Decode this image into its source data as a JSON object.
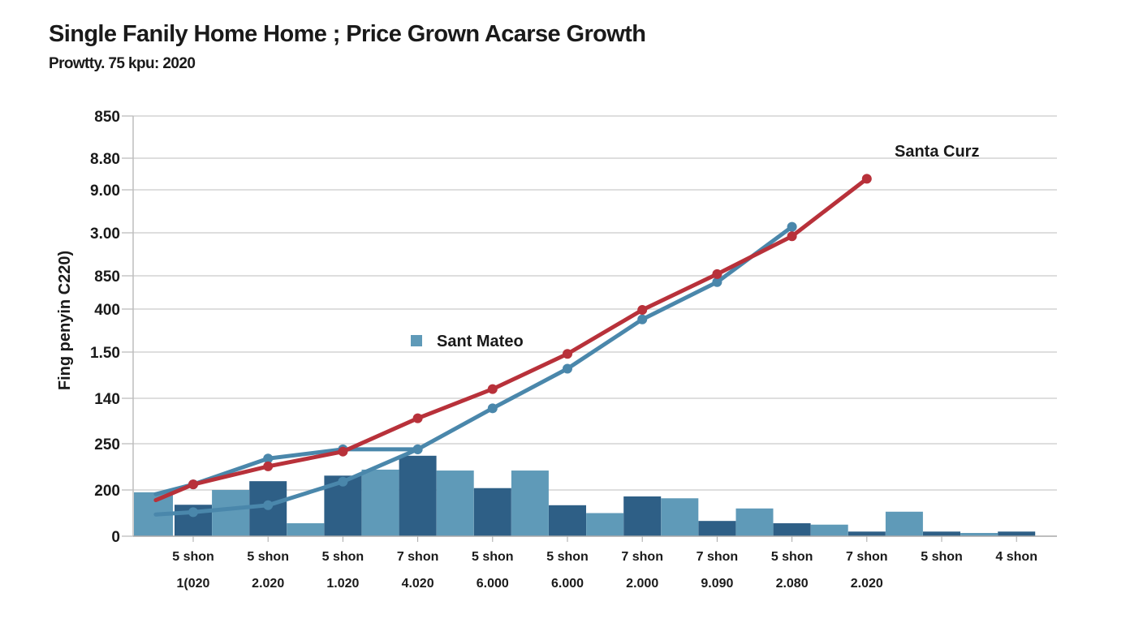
{
  "chart_data": {
    "type": "bar",
    "title": "Single Fanily Home Home ; Price Grown Acarse Growth",
    "subtitle": "Prowtty. 75 kpu: 2020",
    "ylabel": "Fing penyin C220)",
    "xlabel": "",
    "y_ticks": [
      "0",
      "200",
      "250",
      "140",
      "1.50",
      "400",
      "850",
      "3.00",
      "9.00",
      "8.80",
      "850"
    ],
    "value_units": "gridline index (0 = baseline tick '0', 10 = top tick '850')",
    "ylim": [
      0,
      10
    ],
    "grid": true,
    "x_ticks": [
      {
        "top": "5 shon",
        "bottom": "1(020"
      },
      {
        "top": "5 shon",
        "bottom": "2.020"
      },
      {
        "top": "5 shon",
        "bottom": "1.020"
      },
      {
        "top": "7 shon",
        "bottom": "4.020"
      },
      {
        "top": "5 shon",
        "bottom": "6.000"
      },
      {
        "top": "5 shon",
        "bottom": "6.000"
      },
      {
        "top": "7 shon",
        "bottom": "2.000"
      },
      {
        "top": "7 shon",
        "bottom": "9.090"
      },
      {
        "top": "5 shon",
        "bottom": "2.080"
      },
      {
        "top": "7 shon",
        "bottom": "2.020"
      },
      {
        "top": "5 shon",
        "bottom": ""
      },
      {
        "top": "4 shon",
        "bottom": ""
      }
    ],
    "bars": {
      "dark_series": [
        0.68,
        1.19,
        1.31,
        1.74,
        1.04,
        0.67,
        0.86,
        0.33,
        0.28,
        0.1,
        0.1,
        0.1
      ],
      "light_series": [
        1.0,
        0.28,
        1.44,
        1.42,
        1.42,
        0.5,
        0.82,
        0.6,
        0.25,
        0.53,
        0.07,
        0.0
      ],
      "leading_light_bar": 0.95
    },
    "series": [
      {
        "name": "Santa Curz",
        "type": "line",
        "color": "#b8313a",
        "points": [
          [
            -0.5,
            0.78
          ],
          [
            0,
            1.12
          ],
          [
            1,
            1.51
          ],
          [
            2,
            1.83
          ],
          [
            3,
            2.56
          ],
          [
            4,
            3.2
          ],
          [
            5,
            3.96
          ],
          [
            6,
            4.98
          ],
          [
            7,
            6.04
          ],
          [
            8,
            6.92
          ],
          [
            9,
            8.35
          ]
        ]
      },
      {
        "name": "Sant Mateo",
        "type": "line",
        "color": "#4a87ab",
        "points": [
          [
            -0.5,
            0.91
          ],
          [
            0,
            1.12
          ],
          [
            1,
            1.68
          ],
          [
            2,
            1.88
          ],
          [
            3,
            1.88
          ]
        ]
      },
      {
        "name": "Sant Mateo (lower)",
        "type": "line",
        "color": "#4a87ab",
        "points": [
          [
            -0.5,
            0.47
          ],
          [
            0,
            0.52
          ],
          [
            1,
            0.67
          ],
          [
            2,
            1.18
          ],
          [
            3,
            1.88
          ],
          [
            4,
            2.78
          ],
          [
            5,
            3.64
          ],
          [
            6,
            4.76
          ],
          [
            7,
            5.81
          ],
          [
            8,
            7.14
          ]
        ]
      }
    ],
    "legend": [
      {
        "label": "Sant Mateo",
        "color": "#5f9ab8",
        "placement": "center-left"
      }
    ],
    "annotations": [
      {
        "text": "Santa Curz",
        "placement": "top-right"
      }
    ],
    "colors": {
      "bar_dark": "#2e5f86",
      "bar_light": "#5f9ab8",
      "line_red": "#b8313a",
      "line_blue": "#4a87ab",
      "grid": "#d4d4d4",
      "axis": "#a8a8a8"
    }
  }
}
